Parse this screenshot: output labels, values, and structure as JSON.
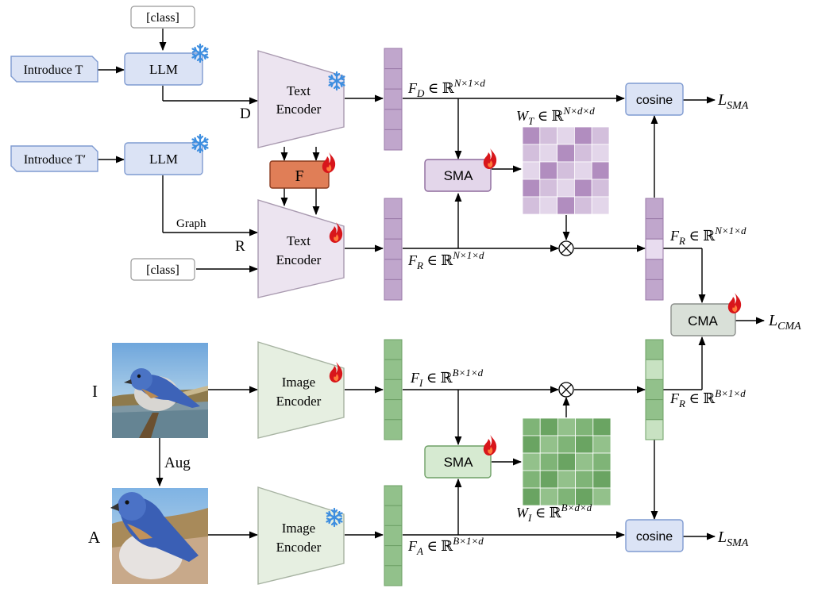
{
  "inputs": {
    "class_top": "[class]",
    "class_bottom": "[class]",
    "introduce_t": "Introduce T",
    "introduce_t_prime": "Introduce T′"
  },
  "llm": {
    "top": "LLM",
    "bottom": "LLM"
  },
  "edges": {
    "d": "D",
    "r": "R",
    "graph": "Graph",
    "i": "I",
    "a": "A",
    "aug": "Aug"
  },
  "encoders": {
    "text_top": {
      "line1": "Text",
      "line2": "Encoder"
    },
    "text_bottom": {
      "line1": "Text",
      "line2": "Encoder"
    },
    "image_top": {
      "line1": "Image",
      "line2": "Encoder"
    },
    "image_bottom": {
      "line1": "Image",
      "line2": "Encoder"
    }
  },
  "modules": {
    "f": "F",
    "sma_top": "SMA",
    "sma_bottom": "SMA",
    "cma": "CMA",
    "cosine_top": "cosine",
    "cosine_bottom": "cosine"
  },
  "features": {
    "fd": {
      "sym": "F",
      "sub": "D",
      "space": " ∈ ℝ",
      "sup": "N×1×d"
    },
    "fr1": {
      "sym": "F",
      "sub": "R",
      "space": " ∈ ℝ",
      "sup": "N×1×d"
    },
    "fr2": {
      "sym": "F",
      "sub": "R",
      "space": " ∈ ℝ",
      "sup": "N×1×d"
    },
    "fi": {
      "sym": "F",
      "sub": "I",
      "space": " ∈ ℝ",
      "sup": "B×1×d"
    },
    "fr3": {
      "sym": "F",
      "sub": "R",
      "space": " ∈ ℝ",
      "sup": "B×1×d"
    },
    "fa": {
      "sym": "F",
      "sub": "A",
      "space": " ∈ ℝ",
      "sup": "B×1×d"
    },
    "wt": {
      "sym": "W",
      "sub": "T",
      "space": " ∈ ℝ",
      "sup": "N×d×d"
    },
    "wi": {
      "sym": "W",
      "sub": "I",
      "space": " ∈ ℝ",
      "sup": "B×d×d"
    }
  },
  "losses": {
    "sma_top": {
      "sym": "L",
      "sub": "SMA"
    },
    "sma_bottom": {
      "sym": "L",
      "sub": "SMA"
    },
    "cma": {
      "sym": "L",
      "sub": "CMA"
    }
  },
  "icons": {
    "frozen": "snowflake-icon",
    "trainable": "flame-icon",
    "multiply": "circled-times-icon"
  },
  "colors": {
    "purple_fill": "#c0a6cc",
    "purple_stroke": "#9a7aa8",
    "green_fill": "#92c18b",
    "green_stroke": "#6ea066",
    "llm_fill": "#dbe3f5",
    "llm_stroke": "#7f9bd1",
    "text_enc_fill": "#ece4f0",
    "image_enc_fill": "#e6efe1",
    "f_fill": "#e07e57",
    "flame": "#d8161b",
    "snow": "#3d8ee0"
  }
}
